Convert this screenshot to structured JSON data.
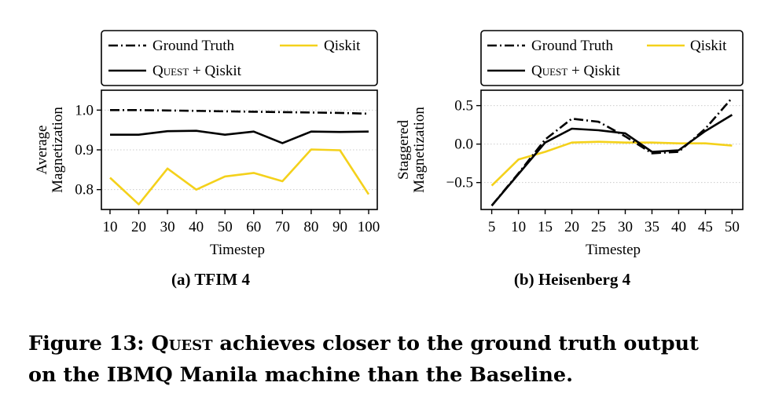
{
  "figure": {
    "caption_prefix": "Figure 13: ",
    "caption_name": "Quest",
    "caption_line1_rest": " achieves closer to the ground truth output",
    "caption_line2": "on the IBMQ Manila machine than the Baseline."
  },
  "colors": {
    "ground_truth": "#000000",
    "quest_qiskit": "#000000",
    "qiskit": "#f4d11b",
    "grid": "#cccccc"
  },
  "chart_data": [
    {
      "type": "line",
      "subcaption": "(a) TFIM 4",
      "xlabel": "Timestep",
      "ylabel_line1": "Average",
      "ylabel_line2": "Magnetization",
      "x": [
        10,
        20,
        30,
        40,
        50,
        60,
        70,
        80,
        90,
        100
      ],
      "xlim": [
        7,
        103
      ],
      "ylim": [
        0.75,
        1.05
      ],
      "xticks": [
        10,
        20,
        30,
        40,
        50,
        60,
        70,
        80,
        90,
        100
      ],
      "yticks": [
        0.8,
        0.9,
        1.0
      ],
      "ytick_labels": [
        "0.8",
        "0.9",
        "1.0"
      ],
      "grid": "y-dotted",
      "legend": {
        "placement": "above",
        "ground_truth": "Ground Truth",
        "qiskit": "Qiskit",
        "quest_name": "Quest",
        "quest_suffix": " + Qiskit"
      },
      "series": [
        {
          "name": "Ground Truth",
          "style": "dashdot",
          "values": [
            1.0,
            1.0,
            0.999,
            0.998,
            0.997,
            0.996,
            0.995,
            0.994,
            0.993,
            0.991
          ]
        },
        {
          "name": "Quest + Qiskit",
          "style": "solid",
          "values": [
            0.938,
            0.938,
            0.947,
            0.948,
            0.938,
            0.946,
            0.917,
            0.946,
            0.945,
            0.946
          ]
        },
        {
          "name": "Qiskit",
          "style": "solid-yellow",
          "values": [
            0.83,
            0.763,
            0.853,
            0.8,
            0.833,
            0.842,
            0.821,
            0.901,
            0.899,
            0.788
          ]
        }
      ]
    },
    {
      "type": "line",
      "subcaption": "(b) Heisenberg 4",
      "xlabel": "Timestep",
      "ylabel_line1": "Staggered",
      "ylabel_line2": "Magnetization",
      "x": [
        5,
        10,
        15,
        20,
        25,
        30,
        35,
        40,
        45,
        50
      ],
      "xlim": [
        3,
        52
      ],
      "ylim": [
        -0.85,
        0.7
      ],
      "xticks": [
        5,
        10,
        15,
        20,
        25,
        30,
        35,
        40,
        45,
        50
      ],
      "yticks": [
        -0.5,
        0.0,
        0.5
      ],
      "ytick_labels": [
        "−0.5",
        "0.0",
        "0.5"
      ],
      "grid": "y-dotted",
      "legend": {
        "placement": "above",
        "ground_truth": "Ground Truth",
        "qiskit": "Qiskit",
        "quest_name": "Quest",
        "quest_suffix": " + Qiskit"
      },
      "series": [
        {
          "name": "Ground Truth",
          "style": "dashdot",
          "values": [
            -0.8,
            -0.38,
            0.06,
            0.33,
            0.29,
            0.1,
            -0.12,
            -0.1,
            0.2,
            0.6
          ]
        },
        {
          "name": "Quest + Qiskit",
          "style": "solid",
          "values": [
            -0.8,
            -0.39,
            0.02,
            0.2,
            0.18,
            0.14,
            -0.1,
            -0.08,
            0.17,
            0.38
          ]
        },
        {
          "name": "Qiskit",
          "style": "solid-yellow",
          "values": [
            -0.54,
            -0.2,
            -0.1,
            0.02,
            0.03,
            0.02,
            0.02,
            0.01,
            0.01,
            -0.02
          ]
        }
      ]
    }
  ]
}
